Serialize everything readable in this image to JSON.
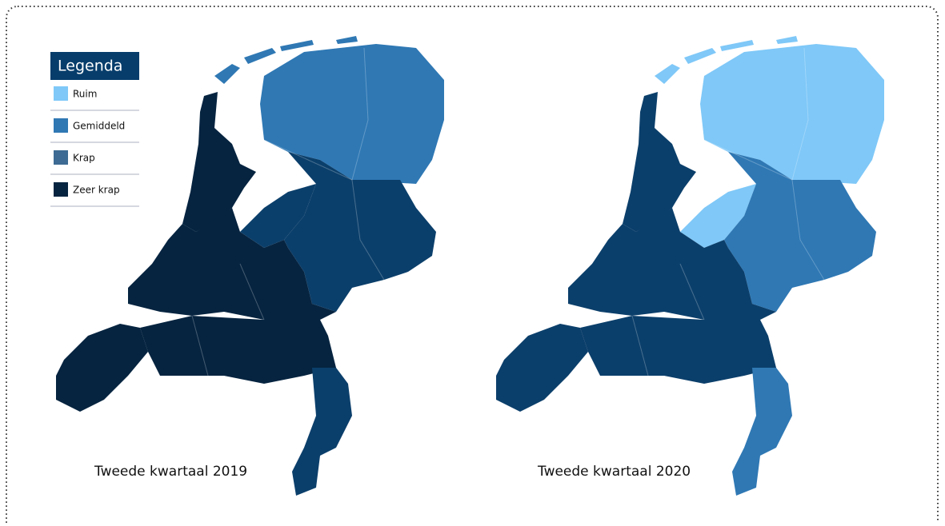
{
  "legend": {
    "title": "Legenda",
    "items": [
      {
        "label": "Ruim",
        "color": "#7fc8f8"
      },
      {
        "label": "Gemiddeld",
        "color": "#2f78b4"
      },
      {
        "label": "Krap",
        "color": "#3d6b93"
      },
      {
        "label": "Zeer krap",
        "color": "#062440"
      }
    ]
  },
  "maps": [
    {
      "caption": "Tweede kwartaal 2019"
    },
    {
      "caption": "Tweede kwartaal 2020"
    }
  ]
}
